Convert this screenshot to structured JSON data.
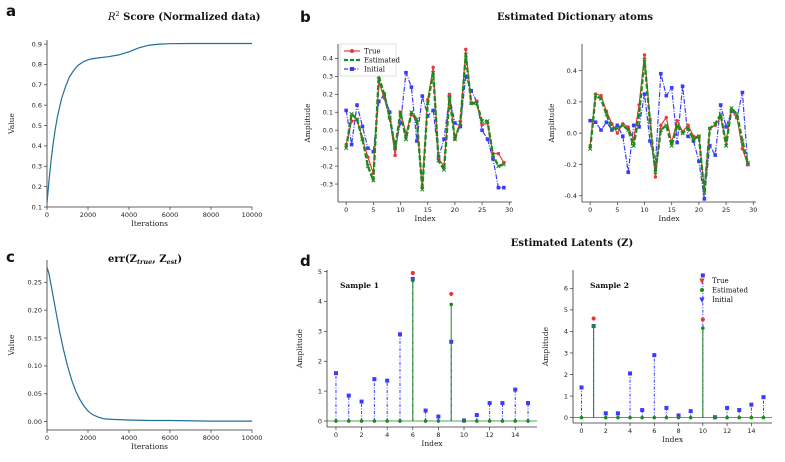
{
  "figure": {
    "panel_letters": [
      "a",
      "b",
      "c",
      "d"
    ],
    "dictionary_title": "Estimated Dictionary atoms",
    "latents_title": "Estimated Latents (Z)"
  },
  "colors": {
    "curve": "#1f6f9c",
    "true": "#e53935",
    "estimated": "#1e8a1e",
    "initial": "#3b3bff",
    "axis": "#333333"
  },
  "chart_data": [
    {
      "id": "a",
      "type": "line",
      "title_prefix": "R",
      "title_sup": "2",
      "title_rest": " Score (Normalized data)",
      "xlabel": "Iterations",
      "ylabel": "Value",
      "xlim": [
        0,
        10000
      ],
      "ylim": [
        0.1,
        0.92
      ],
      "xticks": [
        0,
        2000,
        4000,
        6000,
        8000,
        10000
      ],
      "yticks": [
        0.1,
        0.2,
        0.3,
        0.4,
        0.5,
        0.6,
        0.7,
        0.8,
        0.9
      ],
      "x": [
        0,
        100,
        200,
        300,
        400,
        500,
        700,
        900,
        1100,
        1300,
        1500,
        1800,
        2100,
        2500,
        3000,
        3500,
        4000,
        4500,
        5000,
        5500,
        6000,
        7000,
        8000,
        9000,
        10000
      ],
      "y": [
        0.12,
        0.23,
        0.33,
        0.41,
        0.48,
        0.54,
        0.63,
        0.69,
        0.74,
        0.77,
        0.795,
        0.815,
        0.826,
        0.832,
        0.838,
        0.847,
        0.862,
        0.882,
        0.895,
        0.9,
        0.902,
        0.903,
        0.903,
        0.903,
        0.903
      ]
    },
    {
      "id": "b1",
      "type": "line",
      "xlabel": "Index",
      "ylabel": "Amplitude",
      "xlim": [
        -1.5,
        30.5
      ],
      "ylim": [
        -0.4,
        0.48
      ],
      "xticks": [
        0,
        5,
        10,
        15,
        20,
        25,
        30
      ],
      "yticks": [
        -0.3,
        -0.2,
        -0.1,
        0.0,
        0.1,
        0.2,
        0.3,
        0.4
      ],
      "legend": [
        "True",
        "Estimated",
        "Initial"
      ],
      "series": [
        {
          "name": "True",
          "values": [
            -0.08,
            0.05,
            0.06,
            -0.05,
            -0.15,
            -0.24,
            0.27,
            0.18,
            0.07,
            -0.14,
            0.1,
            -0.02,
            0.09,
            0.05,
            -0.32,
            0.17,
            0.35,
            -0.16,
            -0.2,
            0.2,
            -0.05,
            0.05,
            0.45,
            0.15,
            0.16,
            0.03,
            0.04,
            -0.13,
            -0.13,
            -0.18
          ]
        },
        {
          "name": "Estimated",
          "values": [
            -0.1,
            0.09,
            0.06,
            -0.05,
            -0.2,
            -0.28,
            0.3,
            0.2,
            0.07,
            -0.1,
            0.1,
            -0.05,
            0.1,
            0.06,
            -0.33,
            0.15,
            0.32,
            -0.17,
            -0.22,
            0.18,
            -0.05,
            0.04,
            0.42,
            0.15,
            0.15,
            0.05,
            0.05,
            -0.14,
            -0.2,
            -0.19
          ]
        },
        {
          "name": "Initial",
          "values": [
            0.11,
            -0.08,
            0.14,
            0.02,
            -0.1,
            -0.12,
            0.16,
            0.2,
            0.1,
            -0.1,
            0.04,
            0.32,
            0.24,
            -0.06,
            0.19,
            0.08,
            0.11,
            -0.15,
            -0.05,
            0.19,
            0.04,
            0.02,
            0.3,
            0.22,
            0.16,
            0.0,
            -0.05,
            -0.16,
            -0.32,
            -0.32
          ]
        }
      ]
    },
    {
      "id": "b2",
      "type": "line",
      "xlabel": "Index",
      "ylabel": "Amplitude",
      "xlim": [
        -1.5,
        30.5
      ],
      "ylim": [
        -0.44,
        0.57
      ],
      "xticks": [
        0,
        5,
        10,
        15,
        20,
        25,
        30
      ],
      "yticks": [
        -0.4,
        -0.2,
        0.0,
        0.2,
        0.4
      ],
      "series": [
        {
          "name": "True",
          "values": [
            -0.08,
            0.25,
            0.24,
            0.14,
            0.06,
            0.0,
            0.06,
            0.04,
            -0.04,
            0.18,
            0.5,
            0.09,
            -0.28,
            0.05,
            0.1,
            -0.06,
            0.08,
            0.01,
            0.05,
            -0.02,
            -0.02,
            -0.36,
            0.03,
            0.05,
            0.1,
            -0.05,
            0.15,
            0.1,
            -0.1,
            -0.2
          ]
        },
        {
          "name": "Estimated",
          "values": [
            -0.1,
            0.24,
            0.22,
            0.12,
            0.03,
            0.03,
            0.05,
            0.02,
            -0.08,
            0.12,
            0.47,
            0.07,
            -0.25,
            0.02,
            0.05,
            -0.08,
            0.05,
            0.0,
            0.03,
            -0.04,
            -0.02,
            -0.38,
            0.03,
            0.06,
            0.12,
            -0.08,
            0.16,
            0.12,
            -0.05,
            -0.19
          ]
        },
        {
          "name": "Initial",
          "values": [
            0.08,
            0.07,
            0.02,
            0.07,
            0.02,
            0.05,
            -0.02,
            -0.25,
            0.05,
            0.04,
            0.25,
            -0.05,
            -0.2,
            0.38,
            0.24,
            0.29,
            -0.06,
            0.3,
            -0.02,
            -0.05,
            -0.18,
            -0.42,
            -0.08,
            -0.14,
            0.18,
            0.04,
            0.14,
            0.1,
            0.26,
            -0.2
          ]
        }
      ]
    },
    {
      "id": "c",
      "type": "line",
      "title_main": "err(Z",
      "title_sub1": "true",
      "title_mid": ", Z",
      "title_sub2": "est",
      "title_end": ")",
      "xlabel": "Iterations",
      "ylabel": "Value",
      "xlim": [
        0,
        10000
      ],
      "ylim": [
        -0.015,
        0.29
      ],
      "xticks": [
        0,
        2000,
        4000,
        6000,
        8000,
        10000
      ],
      "yticks": [
        0.0,
        0.05,
        0.1,
        0.15,
        0.2,
        0.25
      ],
      "x": [
        0,
        100,
        200,
        300,
        450,
        600,
        800,
        1000,
        1200,
        1400,
        1600,
        1800,
        2000,
        2200,
        2500,
        2800,
        3200,
        4000,
        5000,
        6000,
        8000,
        10000
      ],
      "y": [
        0.277,
        0.265,
        0.245,
        0.225,
        0.195,
        0.165,
        0.13,
        0.1,
        0.075,
        0.055,
        0.04,
        0.028,
        0.019,
        0.013,
        0.008,
        0.005,
        0.004,
        0.003,
        0.002,
        0.002,
        0.001,
        0.001
      ]
    },
    {
      "id": "d1",
      "type": "stem",
      "label": "Sample 1",
      "xlabel": "Index",
      "ylabel": "Amplitude",
      "xlim": [
        -0.7,
        15.7
      ],
      "ylim": [
        -0.2,
        5.05
      ],
      "xticks": [
        0,
        2,
        4,
        6,
        8,
        10,
        12,
        14
      ],
      "yticks": [
        0,
        1,
        2,
        3,
        4,
        5
      ],
      "series": [
        {
          "name": "True",
          "values": [
            0,
            0,
            0,
            0,
            0,
            0,
            4.95,
            0,
            0,
            4.25,
            0,
            0,
            0,
            0,
            0,
            0
          ]
        },
        {
          "name": "Estimated",
          "values": [
            0,
            0,
            0,
            0,
            0,
            0,
            4.7,
            0,
            0,
            3.9,
            0,
            0,
            0,
            0,
            0,
            0
          ]
        },
        {
          "name": "Initial",
          "values": [
            1.6,
            0.85,
            0.65,
            1.4,
            1.35,
            2.9,
            4.75,
            0.35,
            0.15,
            2.65,
            0.02,
            0.2,
            0.6,
            0.6,
            1.05,
            0.6
          ]
        }
      ]
    },
    {
      "id": "d2",
      "type": "stem",
      "label": "Sample 2",
      "xlabel": "Index",
      "ylabel": "Amplitude",
      "xlim": [
        -0.7,
        15.7
      ],
      "ylim": [
        -0.25,
        6.85
      ],
      "xticks": [
        0,
        2,
        4,
        6,
        8,
        10,
        12,
        14
      ],
      "yticks": [
        0,
        1,
        2,
        3,
        4,
        5,
        6
      ],
      "legend": [
        "True",
        "Estimated",
        "Initial"
      ],
      "series": [
        {
          "name": "True",
          "values": [
            0,
            4.6,
            0,
            0,
            0,
            0,
            0,
            0,
            0,
            0,
            4.55,
            0,
            0,
            0,
            0,
            0
          ]
        },
        {
          "name": "Estimated",
          "values": [
            0,
            4.25,
            0,
            0,
            0,
            0,
            0,
            0,
            0,
            0,
            4.15,
            0,
            0,
            0,
            0,
            0
          ]
        },
        {
          "name": "Initial",
          "values": [
            1.4,
            4.25,
            0.2,
            0.2,
            2.05,
            0.35,
            2.9,
            0.45,
            0.1,
            0.3,
            6.6,
            0.02,
            0.45,
            0.35,
            0.6,
            0.95
          ]
        }
      ]
    }
  ]
}
